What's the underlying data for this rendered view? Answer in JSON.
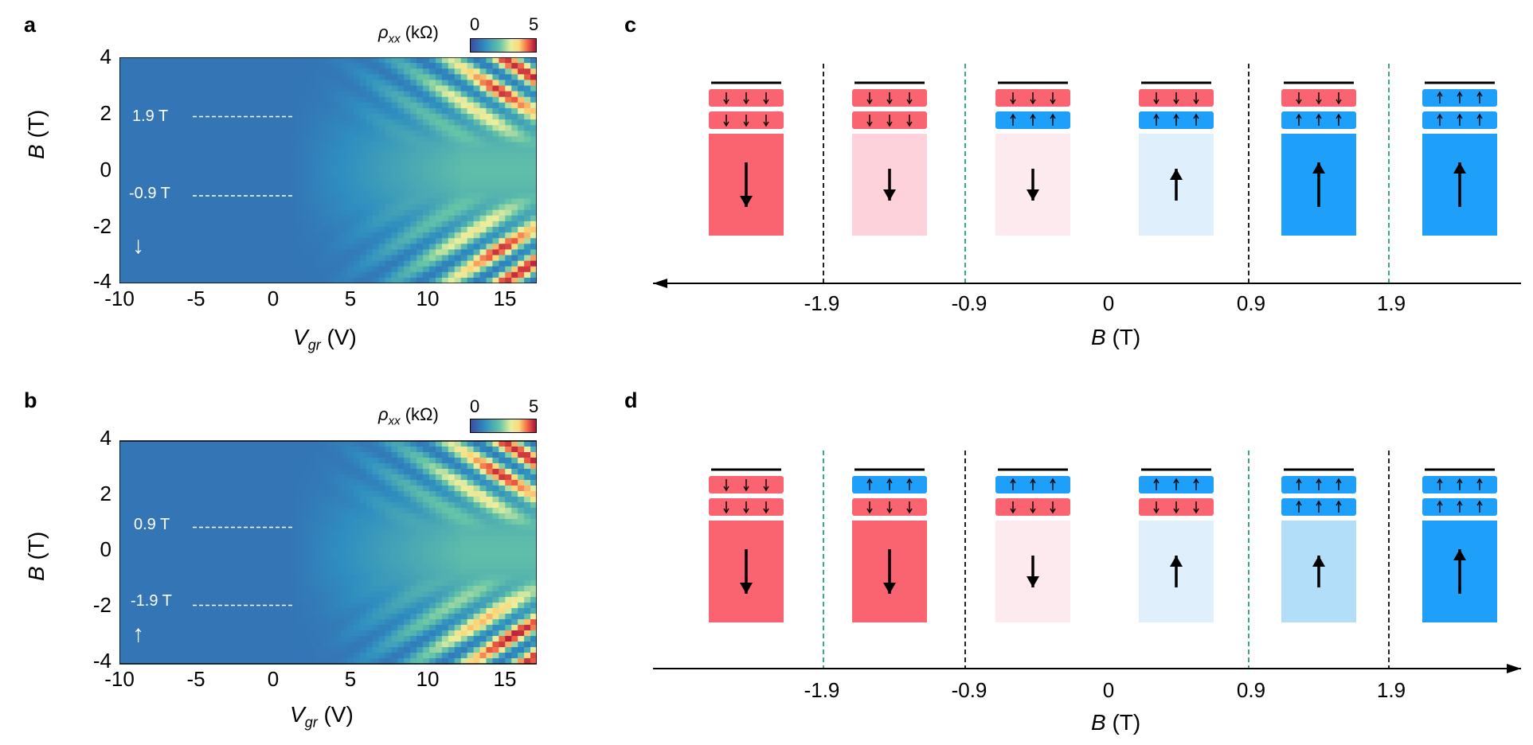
{
  "panels": {
    "a": {
      "letter": "a",
      "colorbar": {
        "title": "ρ",
        "title_sub": "xx",
        "title_unit": "(kΩ)",
        "min": "0",
        "max": "5"
      },
      "y_ticks": [
        "4",
        "2",
        "0",
        "-2",
        "-4"
      ],
      "x_ticks": [
        "-10",
        "-5",
        "0",
        "5",
        "10",
        "15"
      ],
      "xlabel": "V",
      "xlabel_sub": "gr",
      "xlabel_unit": "(V)",
      "ylabel": "B",
      "ylabel_unit": "(T)",
      "line_upper_label": "1.9 T",
      "line_lower_label": "-0.9 T",
      "sweep_arrow": "↓"
    },
    "b": {
      "letter": "b",
      "colorbar": {
        "title": "ρ",
        "title_sub": "xx",
        "title_unit": "(kΩ)",
        "min": "0",
        "max": "5"
      },
      "y_ticks": [
        "4",
        "2",
        "0",
        "-2",
        "-4"
      ],
      "x_ticks": [
        "-10",
        "-5",
        "0",
        "5",
        "10",
        "15"
      ],
      "xlabel": "V",
      "xlabel_sub": "gr",
      "xlabel_unit": "(V)",
      "ylabel": "B",
      "ylabel_unit": "(T)",
      "line_upper_label": "0.9 T",
      "line_lower_label": "-1.9 T",
      "sweep_arrow": "↑"
    },
    "c": {
      "letter": "c",
      "ticks": [
        "-1.9",
        "-0.9",
        "0",
        "0.9",
        "1.9"
      ],
      "xlabel": "B",
      "xlabel_unit": "(T)",
      "arrow_direction": "left",
      "states": [
        {
          "top": "down",
          "bottom": "down",
          "big": "down",
          "strength": "strong"
        },
        {
          "top": "down",
          "bottom": "down",
          "big": "down",
          "strength": "medium"
        },
        {
          "top": "down",
          "bottom": "up",
          "big": "down",
          "strength": "weak"
        },
        {
          "top": "down",
          "bottom": "up",
          "big": "up",
          "strength": "weak"
        },
        {
          "top": "down",
          "bottom": "up",
          "big": "up",
          "strength": "strong"
        },
        {
          "top": "up",
          "bottom": "up",
          "big": "up",
          "strength": "strong"
        }
      ],
      "dividers": [
        "black",
        "green",
        "none",
        "black",
        "green"
      ]
    },
    "d": {
      "letter": "d",
      "ticks": [
        "-1.9",
        "-0.9",
        "0",
        "0.9",
        "1.9"
      ],
      "xlabel": "B",
      "xlabel_unit": "(T)",
      "arrow_direction": "right",
      "states": [
        {
          "top": "down",
          "bottom": "down",
          "big": "down",
          "strength": "strong"
        },
        {
          "top": "up",
          "bottom": "down",
          "big": "down",
          "strength": "strong"
        },
        {
          "top": "up",
          "bottom": "down",
          "big": "down",
          "strength": "weak"
        },
        {
          "top": "up",
          "bottom": "down",
          "big": "up",
          "strength": "weak"
        },
        {
          "top": "up",
          "bottom": "up",
          "big": "up",
          "strength": "medium"
        },
        {
          "top": "up",
          "bottom": "up",
          "big": "up",
          "strength": "strong"
        }
      ],
      "dividers": [
        "green",
        "black",
        "none",
        "green",
        "black"
      ]
    }
  },
  "colors": {
    "red_strong": "#fa6370",
    "red_medium": "#fdd2da",
    "red_weak": "#fdeaee",
    "blue_strong": "#1e9ffa",
    "blue_medium": "#b3defa",
    "blue_weak": "#dfeffb",
    "divider_black": "#222222",
    "divider_green": "#3aa88a"
  },
  "chart_data": [
    {
      "type": "heatmap",
      "panel": "a",
      "title": "",
      "xlabel": "V_gr (V)",
      "ylabel": "B (T)",
      "xlim": [
        -10,
        17
      ],
      "ylim": [
        -4,
        4
      ],
      "colorbar": {
        "label": "ρ_xx (kΩ)",
        "range": [
          0,
          5
        ]
      },
      "annotations": [
        {
          "text": "1.9 T",
          "y": 1.9
        },
        {
          "text": "-0.9 T",
          "y": -0.9
        }
      ],
      "sweep": "down"
    },
    {
      "type": "heatmap",
      "panel": "b",
      "title": "",
      "xlabel": "V_gr (V)",
      "ylabel": "B (T)",
      "xlim": [
        -10,
        17
      ],
      "ylim": [
        -4,
        4
      ],
      "colorbar": {
        "label": "ρ_xx (kΩ)",
        "range": [
          0,
          5
        ]
      },
      "annotations": [
        {
          "text": "0.9 T",
          "y": 0.9
        },
        {
          "text": "-1.9 T",
          "y": -1.9
        }
      ],
      "sweep": "up"
    }
  ]
}
